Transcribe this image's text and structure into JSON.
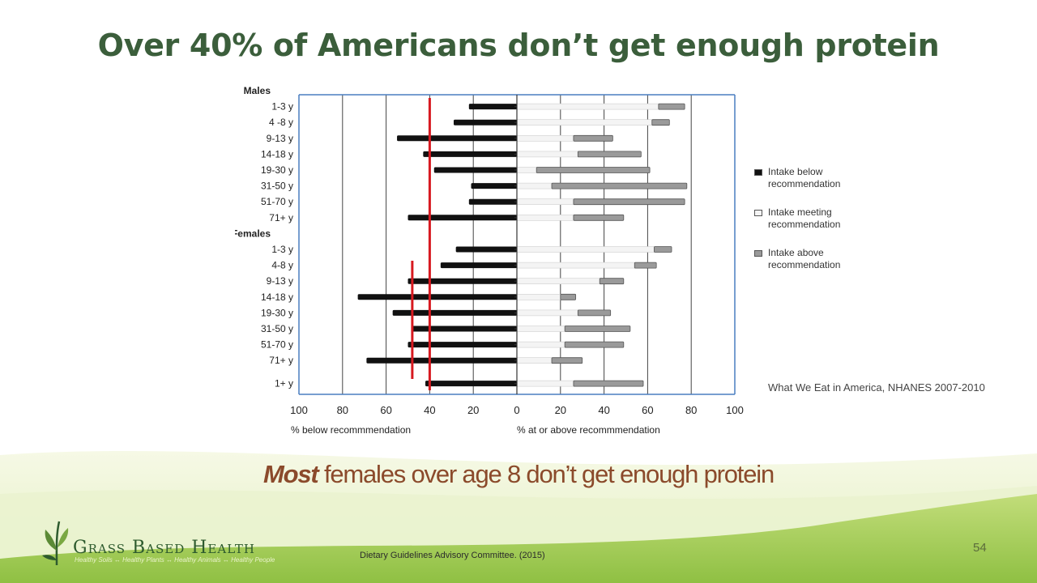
{
  "title": "Over 40% of Americans don’t get enough protein",
  "subtitle": {
    "emphasis": "Most",
    "rest": " females over age 8 don’t get enough protein"
  },
  "source_note": "What We Eat in America, NHANES 2007-2010",
  "citation": "Dietary Guidelines Advisory Committee. (2015)",
  "page_number": "54",
  "logo": {
    "name": "Grass Based Health",
    "tagline": "Healthy Soils ↔ Healthy Plants ↔ Healthy Animals ↔ Healthy People",
    "icon": "grass-sprout-icon"
  },
  "colors": {
    "title": "#3b5e3b",
    "subtitle": "#8b4a2b",
    "below_bar": "#111111",
    "meeting_bar": "#f4f4f4",
    "above_bar": "#9a9a9a",
    "marker": "#d71920",
    "axis": "#4a7fc1"
  },
  "legend": [
    {
      "label_line1": "Intake below",
      "label_line2": "recommendation",
      "color": "#111111"
    },
    {
      "label_line1": "Intake meeting",
      "label_line2": "recommendation",
      "color": "#f4f4f4"
    },
    {
      "label_line1": "Intake above",
      "label_line2": "recommendation",
      "color": "#9a9a9a"
    }
  ],
  "chart_data": {
    "type": "bar",
    "orientation": "horizontal",
    "stacked": true,
    "groups": [
      {
        "label": "Males",
        "rows": [
          {
            "category": "1-3 y",
            "below": 22,
            "meeting": 65,
            "above": 12
          },
          {
            "category": "4 -8 y",
            "below": 29,
            "meeting": 62,
            "above": 8
          },
          {
            "category": "9-13 y",
            "below": 55,
            "meeting": 26,
            "above": 18
          },
          {
            "category": "14-18 y",
            "below": 43,
            "meeting": 28,
            "above": 29
          },
          {
            "category": "19-30 y",
            "below": 38,
            "meeting": 9,
            "above": 52
          },
          {
            "category": "31-50 y",
            "below": 21,
            "meeting": 16,
            "above": 62
          },
          {
            "category": "51-70 y",
            "below": 22,
            "meeting": 26,
            "above": 51
          },
          {
            "category": "71+ y",
            "below": 50,
            "meeting": 26,
            "above": 23
          }
        ]
      },
      {
        "label": "Females",
        "rows": [
          {
            "category": "1-3 y",
            "below": 28,
            "meeting": 63,
            "above": 8
          },
          {
            "category": "4-8 y",
            "below": 35,
            "meeting": 54,
            "above": 10
          },
          {
            "category": "9-13 y",
            "below": 50,
            "meeting": 38,
            "above": 11
          },
          {
            "category": "14-18 y",
            "below": 73,
            "meeting": 20,
            "above": 7
          },
          {
            "category": "19-30 y",
            "below": 57,
            "meeting": 28,
            "above": 15
          },
          {
            "category": "31-50 y",
            "below": 48,
            "meeting": 22,
            "above": 30
          },
          {
            "category": "51-70 y",
            "below": 50,
            "meeting": 22,
            "above": 27
          },
          {
            "category": "71+ y",
            "below": 69,
            "meeting": 16,
            "above": 14
          }
        ]
      },
      {
        "label": "",
        "rows": [
          {
            "category": "1+ y",
            "below": 42,
            "meeting": 26,
            "above": 32
          }
        ]
      }
    ],
    "xlim": [
      -100,
      100
    ],
    "xticks": [
      "100",
      "80",
      "60",
      "40",
      "20",
      "0",
      "20",
      "40",
      "60",
      "80",
      "100"
    ],
    "xlabel_left": "% below recommmendation",
    "xlabel_right": "% at or above recommmendation",
    "grid": true,
    "legend_position": "right",
    "reference_lines": [
      {
        "value": -40,
        "span": "all"
      },
      {
        "value": -48,
        "span": "females 9-13 y to 71+ y"
      }
    ]
  }
}
